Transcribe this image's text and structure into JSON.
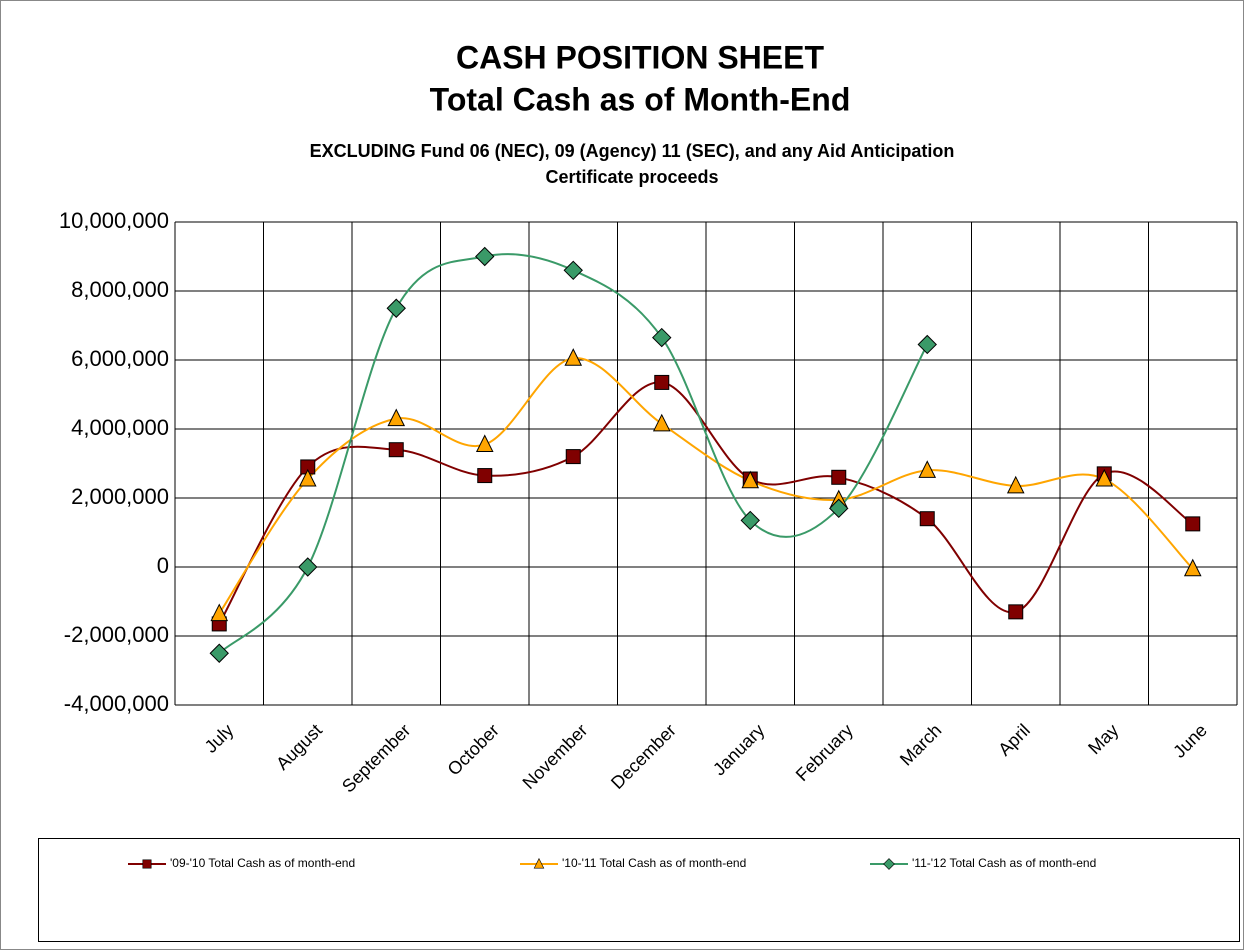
{
  "chart_data": {
    "type": "line",
    "title": [
      "CASH POSITION SHEET",
      "Total Cash as of Month-End"
    ],
    "subtitle": [
      "EXCLUDING Fund 06 (NEC), 09 (Agency) 11 (SEC), and any Aid Anticipation",
      "Certificate proceeds"
    ],
    "categories": [
      "July",
      "August",
      "September",
      "October",
      "November",
      "December",
      "January",
      "February",
      "March",
      "April",
      "May",
      "June"
    ],
    "series": [
      {
        "name": "'09-'10 Total Cash as of month-end",
        "color": "#800000",
        "marker": "square",
        "values": [
          -1650000,
          2900000,
          3400000,
          2650000,
          3200000,
          5350000,
          2550000,
          2600000,
          1400000,
          -1300000,
          2700000,
          1250000
        ]
      },
      {
        "name": "'10-'11 Total Cash as of month-end",
        "color": "#ffa500",
        "marker": "triangle",
        "values": [
          -1350000,
          2550000,
          4300000,
          3550000,
          6050000,
          4150000,
          2500000,
          1950000,
          2800000,
          2350000,
          2550000,
          -50000
        ]
      },
      {
        "name": "'11-'12 Total Cash as of month-end",
        "color": "#3a9a68",
        "marker": "diamond",
        "values": [
          -2500000,
          0,
          7500000,
          9000000,
          8600000,
          6650000,
          1350000,
          1700000,
          6450000,
          null,
          null,
          null
        ]
      }
    ],
    "ylim": [
      -4000000,
      10000000
    ],
    "yticks": [
      {
        "value": -4000000,
        "label": "-4,000,000"
      },
      {
        "value": -2000000,
        "label": "-2,000,000"
      },
      0,
      {
        "value": 2000000,
        "label": "2,000,000"
      },
      {
        "value": 4000000,
        "label": "4,000,000"
      },
      {
        "value": 6000000,
        "label": "6,000,000"
      },
      {
        "value": 8000000,
        "label": "8,000,000"
      },
      {
        "value": 10000000,
        "label": "10,000,000"
      }
    ],
    "grid": true,
    "smooth": true,
    "legend": "bottom"
  }
}
